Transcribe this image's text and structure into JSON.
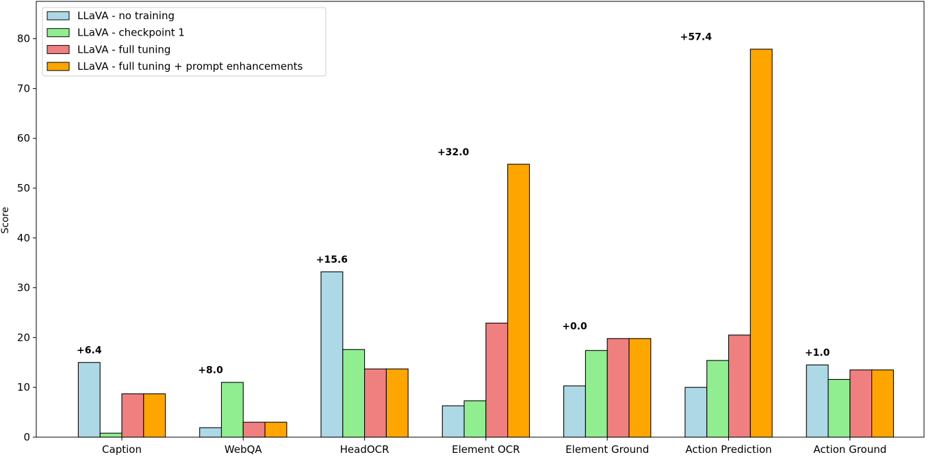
{
  "chart_data": {
    "type": "bar",
    "title": "",
    "xlabel": "",
    "ylabel": "Score",
    "ylim": [
      0,
      87.5
    ],
    "yticks": [
      0,
      10,
      20,
      30,
      40,
      50,
      60,
      70,
      80
    ],
    "grid": false,
    "legend_position": "top-left",
    "categories": [
      "Caption",
      "WebQA",
      "HeadOCR",
      "Element OCR",
      "Element Ground",
      "Action Prediction",
      "Action Ground"
    ],
    "series": [
      {
        "name": "LLaVA - no training",
        "color": "#add8e6",
        "values": [
          15.0,
          1.9,
          33.2,
          6.3,
          10.3,
          10.0,
          14.5
        ]
      },
      {
        "name": "LLaVA - checkpoint 1",
        "color": "#90ee90",
        "values": [
          0.8,
          11.0,
          17.6,
          7.3,
          17.4,
          15.4,
          11.6
        ]
      },
      {
        "name": "LLaVA - full tuning",
        "color": "#f08080",
        "values": [
          8.7,
          3.0,
          13.7,
          22.9,
          19.8,
          20.5,
          13.5
        ]
      },
      {
        "name": "LLaVA - full tuning + prompt enhancements",
        "color": "#ffa500",
        "values": [
          8.7,
          3.0,
          13.7,
          54.8,
          19.8,
          77.9,
          13.5
        ]
      }
    ],
    "annotations": [
      {
        "category": "Caption",
        "text": "+6.4",
        "y": 17.5
      },
      {
        "category": "WebQA",
        "text": "+8.0",
        "y": 13.5
      },
      {
        "category": "HeadOCR",
        "text": "+15.6",
        "y": 35.7
      },
      {
        "category": "Element OCR",
        "text": "+32.0",
        "y": 57.3
      },
      {
        "category": "Element Ground",
        "text": "+0.0",
        "y": 22.3
      },
      {
        "category": "Action Prediction",
        "text": "+57.4",
        "y": 80.4
      },
      {
        "category": "Action Ground",
        "text": "+1.0",
        "y": 17.0
      }
    ]
  }
}
